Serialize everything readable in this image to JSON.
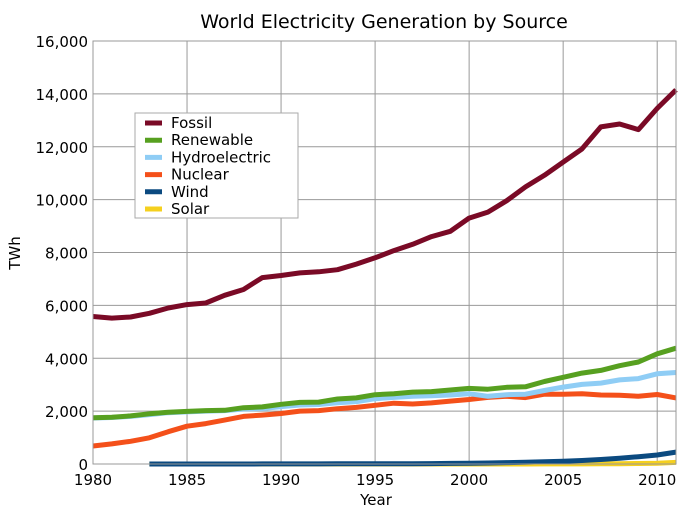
{
  "chart_data": {
    "type": "line",
    "title": "World Electricity Generation by Source",
    "xlabel": "Year",
    "ylabel": "TWh",
    "xlim": [
      1980,
      2011
    ],
    "ylim": [
      0,
      16000
    ],
    "x_ticks": [
      "1980",
      "1985",
      "1990",
      "1995",
      "2000",
      "2005",
      "2010"
    ],
    "y_ticks": [
      "0",
      "2,000",
      "4,000",
      "6,000",
      "8,000",
      "10,000",
      "12,000",
      "14,000",
      "16,000"
    ],
    "grid": true,
    "legend_position": "upper-left",
    "x": [
      1980,
      1981,
      1982,
      1983,
      1984,
      1985,
      1986,
      1987,
      1988,
      1989,
      1990,
      1991,
      1992,
      1993,
      1994,
      1995,
      1996,
      1997,
      1998,
      1999,
      2000,
      2001,
      2002,
      2003,
      2004,
      2005,
      2006,
      2007,
      2008,
      2009,
      2010,
      2011
    ],
    "series": [
      {
        "name": "Fossil",
        "color": "#7a0a26",
        "values": [
          5580,
          5520,
          5560,
          5700,
          5900,
          6030,
          6090,
          6380,
          6600,
          7050,
          7130,
          7230,
          7270,
          7350,
          7560,
          7800,
          8070,
          8310,
          8600,
          8800,
          9300,
          9530,
          9960,
          10480,
          10920,
          11420,
          11920,
          12750,
          12860,
          12650,
          13450,
          14150
        ]
      },
      {
        "name": "Renewable",
        "color": "#57a020",
        "values": [
          1750,
          1770,
          1820,
          1900,
          1960,
          1990,
          2020,
          2030,
          2130,
          2160,
          2260,
          2330,
          2340,
          2460,
          2500,
          2620,
          2660,
          2720,
          2740,
          2800,
          2860,
          2830,
          2900,
          2920,
          3120,
          3280,
          3440,
          3540,
          3720,
          3860,
          4170,
          4380
        ]
      },
      {
        "name": "Hydroelectric",
        "color": "#8fcdf5",
        "values": [
          1740,
          1760,
          1800,
          1870,
          1940,
          1970,
          2000,
          2020,
          2080,
          2100,
          2170,
          2230,
          2250,
          2320,
          2360,
          2470,
          2520,
          2560,
          2580,
          2610,
          2660,
          2560,
          2620,
          2640,
          2780,
          2910,
          3010,
          3060,
          3180,
          3230,
          3410,
          3460
        ]
      },
      {
        "name": "Nuclear",
        "color": "#f4501a",
        "values": [
          680,
          760,
          860,
          990,
          1220,
          1430,
          1530,
          1660,
          1800,
          1850,
          1910,
          2000,
          2020,
          2090,
          2140,
          2220,
          2300,
          2270,
          2310,
          2380,
          2440,
          2520,
          2560,
          2510,
          2640,
          2640,
          2660,
          2610,
          2600,
          2560,
          2630,
          2500
        ]
      },
      {
        "name": "Wind",
        "color": "#0b4a80",
        "values": [
          null,
          null,
          null,
          0,
          0,
          0,
          0,
          1,
          1,
          2,
          4,
          4,
          5,
          6,
          7,
          8,
          10,
          12,
          16,
          21,
          31,
          38,
          52,
          63,
          85,
          104,
          133,
          170,
          220,
          276,
          342,
          450
        ]
      },
      {
        "name": "Solar",
        "color": "#f5d01e",
        "values": [
          null,
          null,
          null,
          0,
          0,
          0,
          0,
          0,
          0,
          0,
          0,
          0,
          0,
          0,
          0,
          0,
          0,
          0,
          0,
          0,
          1,
          1,
          1,
          1,
          2,
          3,
          5,
          7,
          12,
          20,
          32,
          60
        ]
      }
    ]
  }
}
